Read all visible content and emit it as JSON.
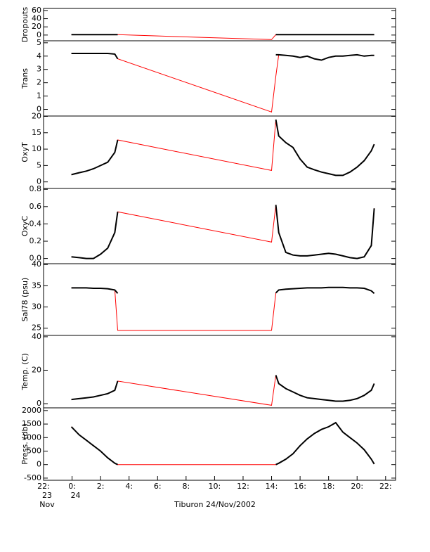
{
  "chart_data": {
    "type": "line",
    "xlabel": "Tiburon 24/Nov/2002",
    "x": [
      -0.05,
      0.5,
      1,
      1.5,
      2,
      2.5,
      3,
      3.2,
      14.0,
      14.3,
      14.5,
      15,
      15.5,
      16,
      16.5,
      17,
      17.5,
      18,
      18.5,
      19,
      19.5,
      20,
      20.5,
      21,
      21.2
    ],
    "xlim": [
      -2,
      22.7
    ],
    "xticks": [
      {
        "value": -2,
        "label": "22:"
      },
      {
        "value": 0,
        "label": "0:"
      },
      {
        "value": 2,
        "label": "2:"
      },
      {
        "value": 4,
        "label": "4:"
      },
      {
        "value": 6,
        "label": "6:"
      },
      {
        "value": 8,
        "label": "8:"
      },
      {
        "value": 10,
        "label": "10:"
      },
      {
        "value": 12,
        "label": "12:"
      },
      {
        "value": 14,
        "label": "14:"
      },
      {
        "value": 16,
        "label": "16:"
      },
      {
        "value": 18,
        "label": "18:"
      },
      {
        "value": 20,
        "label": "20:"
      },
      {
        "value": 22,
        "label": "22:"
      }
    ],
    "date_labels": [
      {
        "value": -2,
        "lines": [
          "23",
          "Nov"
        ]
      },
      {
        "value": 0,
        "lines": [
          "24"
        ]
      }
    ],
    "panels": [
      {
        "ylabel": "Dropouts",
        "ylim": [
          -14,
          65
        ],
        "yticks": [
          0,
          20,
          40,
          60
        ],
        "series": [
          {
            "color": "#ff0000",
            "values": [
              1,
              1,
              1,
              1,
              1,
              1,
              1,
              1,
              -11,
              1,
              1,
              1,
              1,
              1,
              1,
              1,
              1,
              1,
              1,
              1,
              1,
              1,
              1,
              1,
              1
            ]
          },
          {
            "color": "#000000",
            "values": [
              1,
              1,
              1,
              1,
              1,
              1,
              1,
              1,
              null,
              1,
              1,
              1,
              1,
              1,
              1,
              1,
              1,
              1,
              1,
              1,
              1,
              1,
              1,
              1,
              1
            ]
          }
        ]
      },
      {
        "ylabel": "Trans",
        "ylim": [
          -0.5,
          5.15
        ],
        "yticks": [
          0,
          1,
          2,
          3,
          4,
          5
        ],
        "series": [
          {
            "color": "#ff0000",
            "values": [
              4.2,
              4.2,
              4.2,
              4.2,
              4.2,
              4.2,
              4.15,
              3.8,
              -0.2,
              2.5,
              4.1,
              4.05,
              4.0,
              3.9,
              4.0,
              3.8,
              3.7,
              3.9,
              4.0,
              4.0,
              4.05,
              4.1,
              4.0,
              4.05,
              4.05
            ]
          },
          {
            "color": "#000000",
            "values": [
              4.2,
              4.2,
              4.2,
              4.2,
              4.2,
              4.2,
              4.15,
              3.8,
              null,
              4.1,
              4.1,
              4.05,
              4.0,
              3.9,
              4.0,
              3.8,
              3.7,
              3.9,
              4.0,
              4.0,
              4.05,
              4.1,
              4.0,
              4.05,
              4.05
            ]
          }
        ]
      },
      {
        "ylabel": "OxyT",
        "ylim": [
          -2,
          20.1
        ],
        "yticks": [
          0,
          5,
          10,
          15,
          20
        ],
        "series": [
          {
            "color": "#ff0000",
            "values": [
              2.2,
              2.8,
              3.3,
              4,
              5,
              6,
              9,
              12.8,
              3.5,
              19,
              14,
              12,
              10.5,
              7,
              4.5,
              3.7,
              3,
              2.5,
              2,
              2,
              3,
              4.5,
              6.5,
              9.5,
              11.5
            ]
          },
          {
            "color": "#000000",
            "values": [
              2.2,
              2.8,
              3.3,
              4,
              5,
              6,
              9,
              12.8,
              null,
              19,
              14,
              12,
              10.5,
              7,
              4.5,
              3.7,
              3,
              2.5,
              2,
              2,
              3,
              4.5,
              6.5,
              9.5,
              11.5
            ]
          }
        ]
      },
      {
        "ylabel": "OxyC",
        "ylim": [
          -0.06,
          0.81
        ],
        "yticks": [
          0.0,
          0.2,
          0.4,
          0.6,
          0.8
        ],
        "ytick_labels": [
          "0.0",
          "0.2",
          "0.4",
          "0.6",
          "0.8"
        ],
        "series": [
          {
            "color": "#ff0000",
            "values": [
              0.02,
              0.01,
              0,
              0,
              0.05,
              0.12,
              0.3,
              0.54,
              0.19,
              0.62,
              0.3,
              0.07,
              0.04,
              0.03,
              0.03,
              0.04,
              0.05,
              0.06,
              0.05,
              0.03,
              0.01,
              0,
              0.02,
              0.15,
              0.58
            ]
          },
          {
            "color": "#000000",
            "values": [
              0.02,
              0.01,
              0,
              0,
              0.05,
              0.12,
              0.3,
              0.54,
              null,
              0.62,
              0.3,
              0.07,
              0.04,
              0.03,
              0.03,
              0.04,
              0.05,
              0.06,
              0.05,
              0.03,
              0.01,
              0,
              0.02,
              0.15,
              0.58
            ]
          }
        ]
      },
      {
        "ylabel": "Sal78 (psu)",
        "ylim": [
          23.3,
          40.2
        ],
        "yticks": [
          25,
          30,
          35,
          40
        ],
        "series": [
          {
            "color": "#ff0000",
            "values": [
              34.5,
              34.5,
              34.5,
              34.4,
              34.4,
              34.3,
              34.0,
              24.5,
              24.5,
              33.3,
              34.0,
              34.2,
              34.3,
              34.4,
              34.5,
              34.5,
              34.5,
              34.6,
              34.6,
              34.6,
              34.5,
              34.5,
              34.4,
              33.8,
              33.2
            ]
          },
          {
            "color": "#000000",
            "values": [
              34.5,
              34.5,
              34.5,
              34.4,
              34.4,
              34.3,
              34.0,
              33.2,
              null,
              33.3,
              34.0,
              34.2,
              34.3,
              34.4,
              34.5,
              34.5,
              34.5,
              34.6,
              34.6,
              34.6,
              34.5,
              34.5,
              34.4,
              33.8,
              33.2
            ]
          }
        ]
      },
      {
        "ylabel": "Temp. (C)",
        "ylim": [
          -2.5,
          40.8
        ],
        "yticks": [
          0,
          20,
          40
        ],
        "series": [
          {
            "color": "#ff0000",
            "values": [
              2.5,
              3,
              3.5,
              4,
              5,
              6,
              8,
              13.5,
              -1,
              17,
              12,
              9,
              7,
              5,
              3.5,
              3,
              2.5,
              2,
              1.5,
              1.5,
              2,
              3,
              5,
              8,
              12
            ]
          },
          {
            "color": "#000000",
            "values": [
              2.5,
              3,
              3.5,
              4,
              5,
              6,
              8,
              13.5,
              null,
              17,
              12,
              9,
              7,
              5,
              3.5,
              3,
              2.5,
              2,
              1.5,
              1.5,
              2,
              3,
              5,
              8,
              12
            ]
          }
        ]
      },
      {
        "ylabel": "Press. (db)",
        "ylim": [
          -580,
          2100
        ],
        "yticks": [
          -500,
          0,
          500,
          1000,
          1500,
          2000
        ],
        "series": [
          {
            "color": "#ff0000",
            "values": [
              1400,
              1100,
              900,
              700,
              500,
              250,
              50,
              0,
              0,
              0,
              50,
              200,
              400,
              700,
              950,
              1150,
              1300,
              1400,
              1550,
              1200,
              1000,
              800,
              550,
              200,
              20
            ]
          },
          {
            "color": "#000000",
            "values": [
              1400,
              1100,
              900,
              700,
              500,
              250,
              50,
              0,
              null,
              0,
              50,
              200,
              400,
              700,
              950,
              1150,
              1300,
              1400,
              1550,
              1200,
              1000,
              800,
              550,
              200,
              20
            ]
          }
        ]
      }
    ]
  }
}
